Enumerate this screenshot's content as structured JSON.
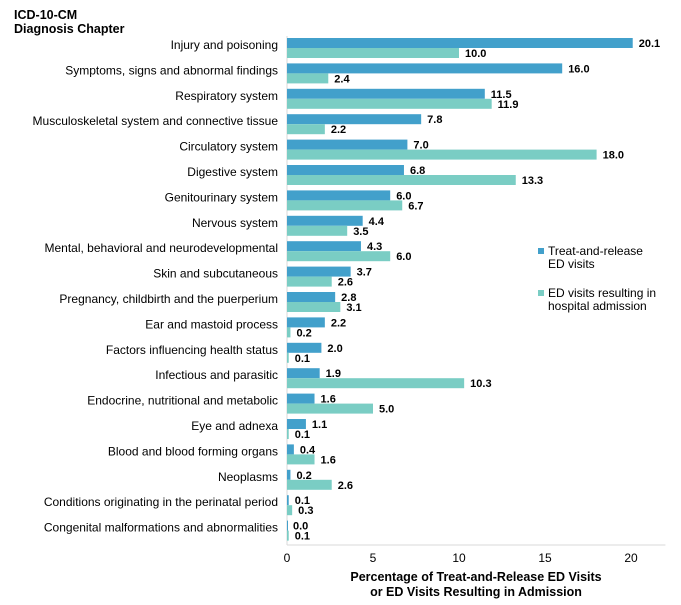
{
  "chart_data": {
    "type": "bar",
    "orientation": "horizontal",
    "title": [
      "ICD-10-CM",
      "Diagnosis Chapter"
    ],
    "xlabel": [
      "Percentage of Treat-and-Release ED Visits",
      "or ED Visits  Resulting in Admission"
    ],
    "xlim": [
      0,
      22
    ],
    "xticks": [
      0,
      5,
      10,
      15,
      20
    ],
    "grid": false,
    "legend_position": "right",
    "categories": [
      "Injury and poisoning",
      "Symptoms, signs and abnormal findings",
      "Respiratory system",
      "Musculoskeletal system and connective tissue",
      "Circulatory system",
      "Digestive system",
      "Genitourinary system",
      "Nervous system",
      "Mental, behavioral and neurodevelopmental",
      "Skin and subcutaneous",
      "Pregnancy, childbirth and the puerperium",
      "Ear and mastoid process",
      "Factors influencing health status",
      "Infectious and parasitic",
      "Endocrine, nutritional and metabolic",
      "Eye and adnexa",
      "Blood and blood forming organs",
      "Neoplasms",
      "Conditions originating in the perinatal period",
      "Congenital malformations and abnormalities"
    ],
    "series": [
      {
        "name": [
          "Treat-and-release",
          "ED visits"
        ],
        "color": "#42A0CB",
        "values": [
          20.1,
          16.0,
          11.5,
          7.8,
          7.0,
          6.8,
          6.0,
          4.4,
          4.3,
          3.7,
          2.8,
          2.2,
          2.0,
          1.9,
          1.6,
          1.1,
          0.4,
          0.2,
          0.1,
          0.0
        ]
      },
      {
        "name": [
          "ED visits resulting in",
          "hospital admission"
        ],
        "color": "#7ACDC4",
        "values": [
          10.0,
          2.4,
          11.9,
          2.2,
          18.0,
          13.3,
          6.7,
          3.5,
          6.0,
          2.6,
          3.1,
          0.2,
          0.1,
          10.3,
          5.0,
          0.1,
          1.6,
          2.6,
          0.3,
          0.1
        ]
      }
    ]
  }
}
